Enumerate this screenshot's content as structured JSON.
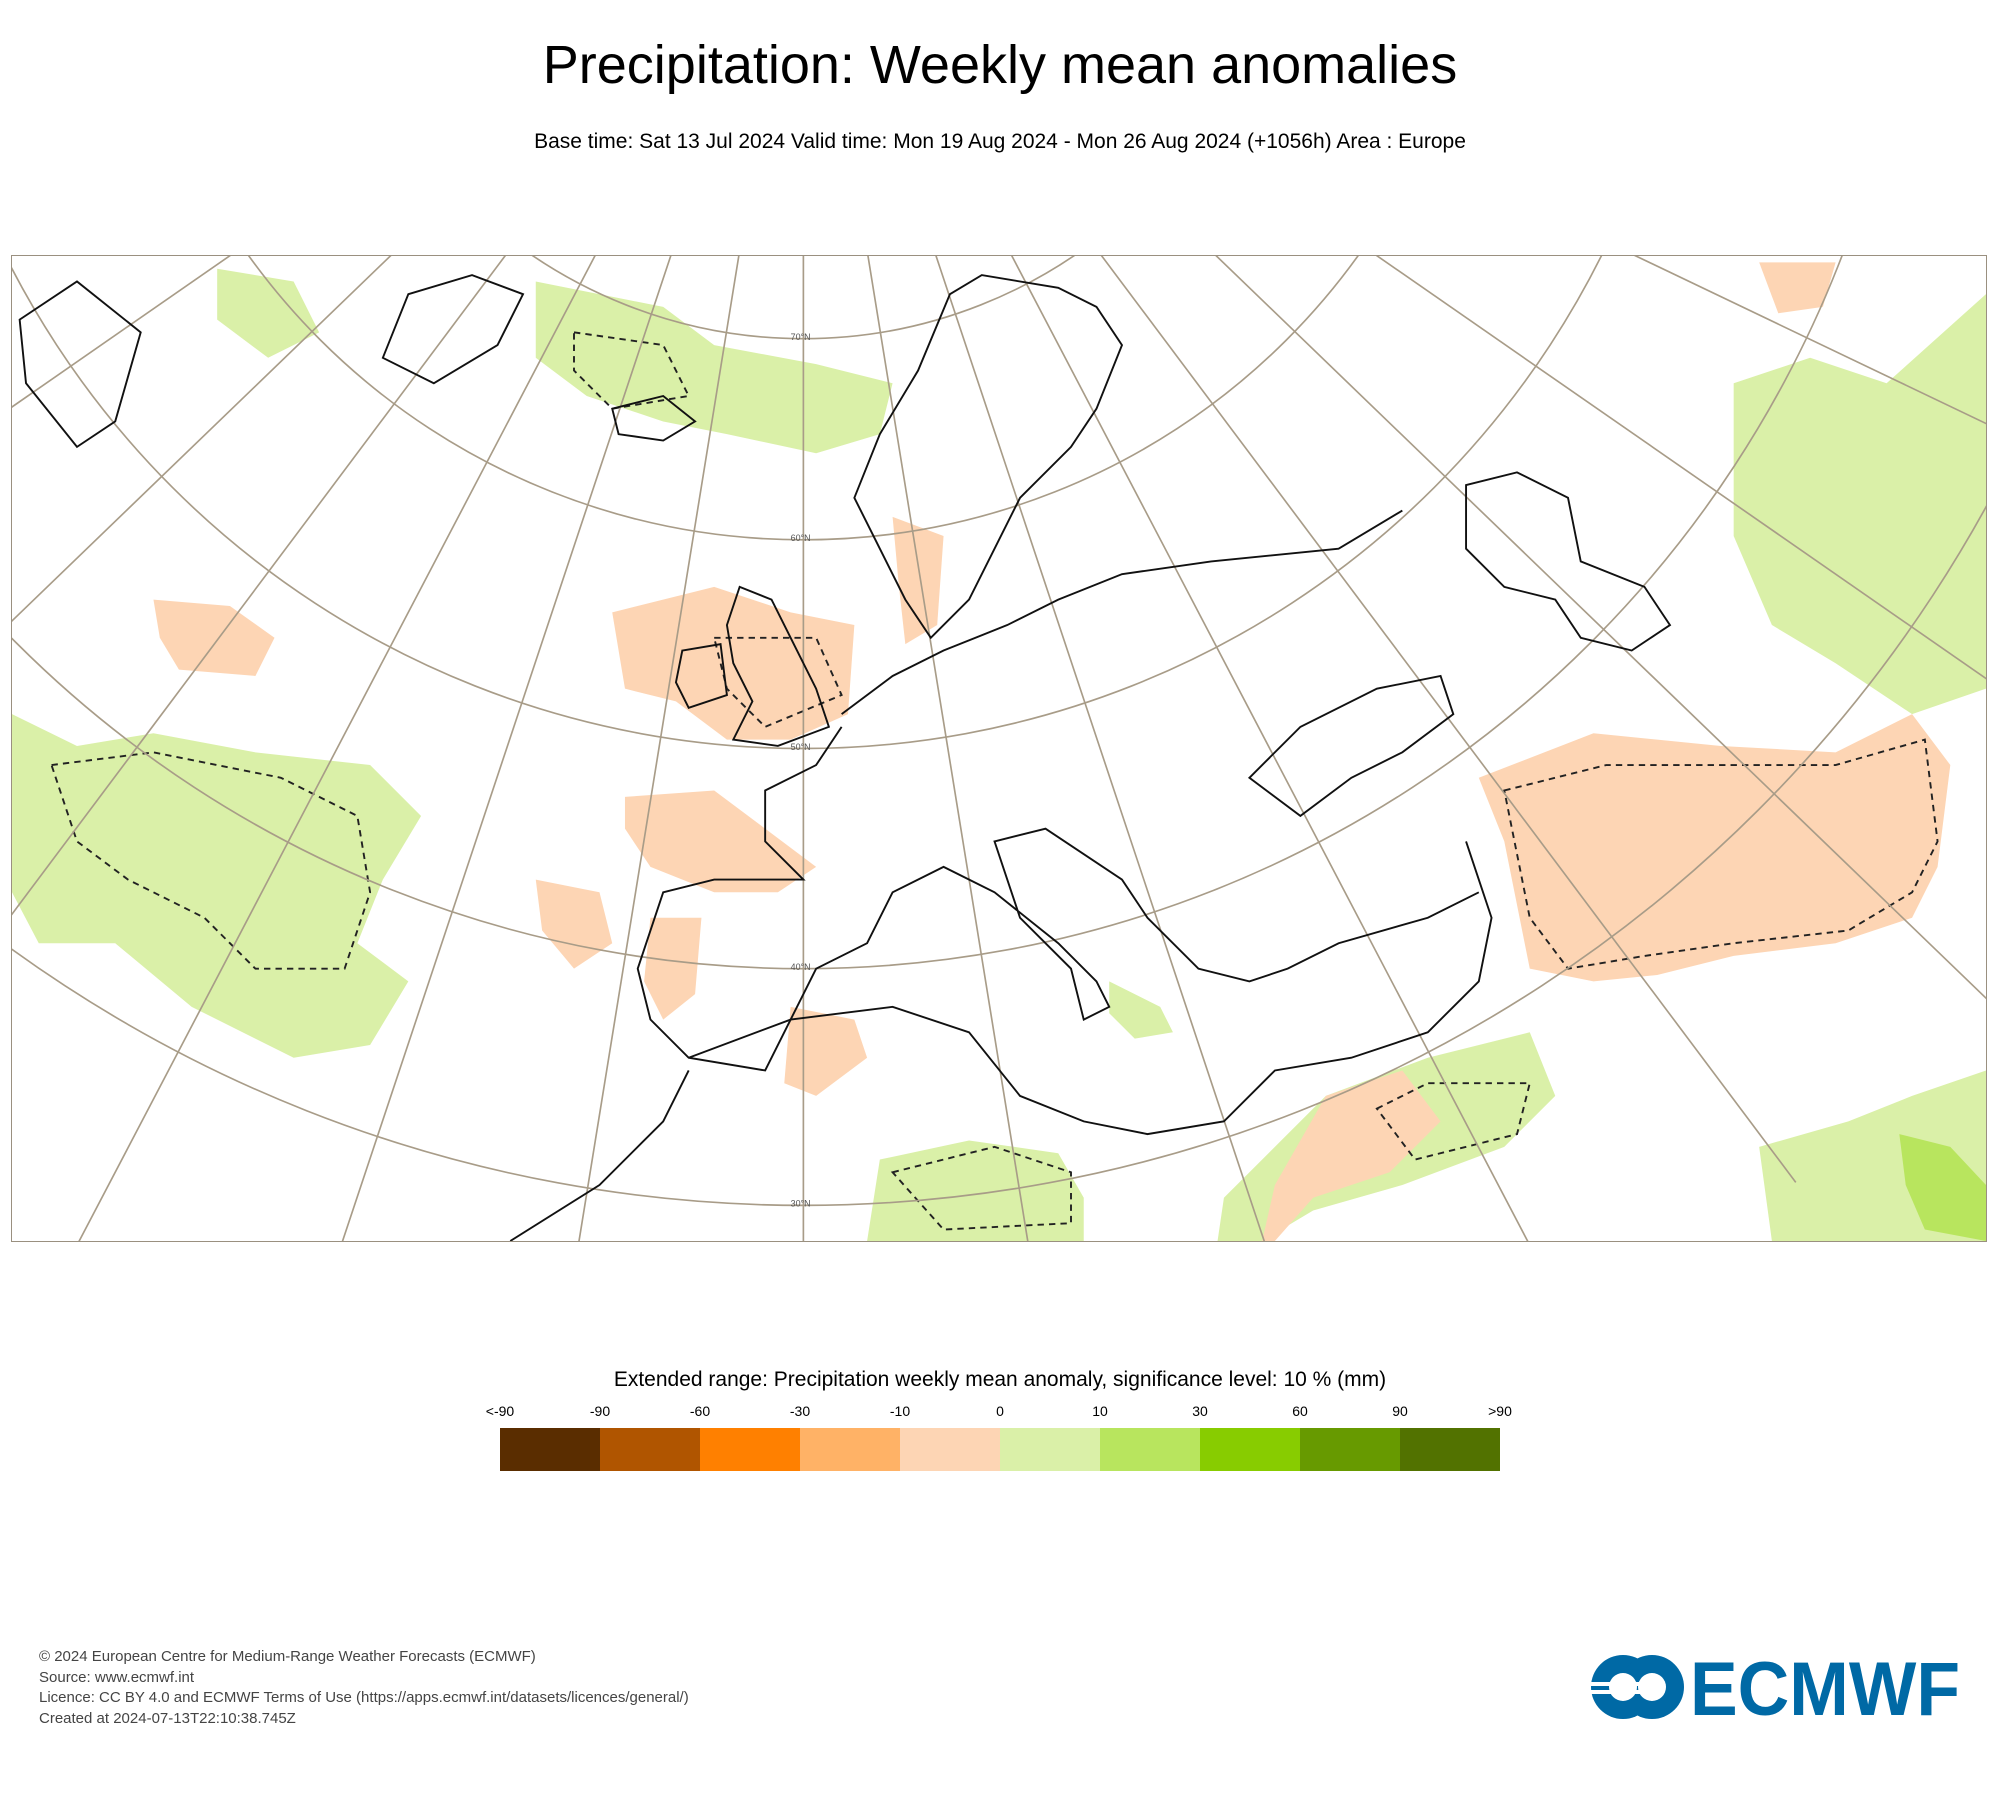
{
  "title": "Precipitation: Weekly mean anomalies",
  "subtitle": "Base time: Sat 13 Jul 2024 Valid time: Mon 19 Aug 2024 - Mon 26 Aug 2024 (+1056h) Area : Europe",
  "chart_data": {
    "type": "heatmap",
    "title": "Precipitation: Weekly mean anomalies",
    "area": "Europe",
    "latitude_labels": [
      "70°N",
      "60°N",
      "50°N",
      "40°N",
      "30°N"
    ],
    "colorbar": {
      "title": "Extended range: Precipitation weekly mean anomaly, significance level: 10 % (mm)",
      "ticks": [
        "<-90",
        "-90",
        "-60",
        "-30",
        "-10",
        "0",
        "10",
        "30",
        "60",
        "90",
        ">90"
      ],
      "colors": [
        "#5a2d00",
        "#b05500",
        "#ff8000",
        "#ffb266",
        "#fdd5b4",
        "#daf0a8",
        "#b8e55e",
        "#88cc00",
        "#679a00",
        "#527200"
      ]
    }
  },
  "colors": {
    "dry_light": "#fdd5b4",
    "wet_light": "#daf0a8",
    "wet_mid": "#b8e55e",
    "graticule": "#a89c88",
    "logo": "#0069a5"
  },
  "footer": [
    "© 2024 European Centre for Medium-Range Weather Forecasts (ECMWF)",
    "Source: www.ecmwf.int",
    "Licence: CC BY 4.0 and ECMWF Terms of Use (https://apps.ecmwf.int/datasets/licences/general/)",
    "Created at 2024-07-13T22:10:38.745Z"
  ],
  "logo_text": "ECMWF"
}
